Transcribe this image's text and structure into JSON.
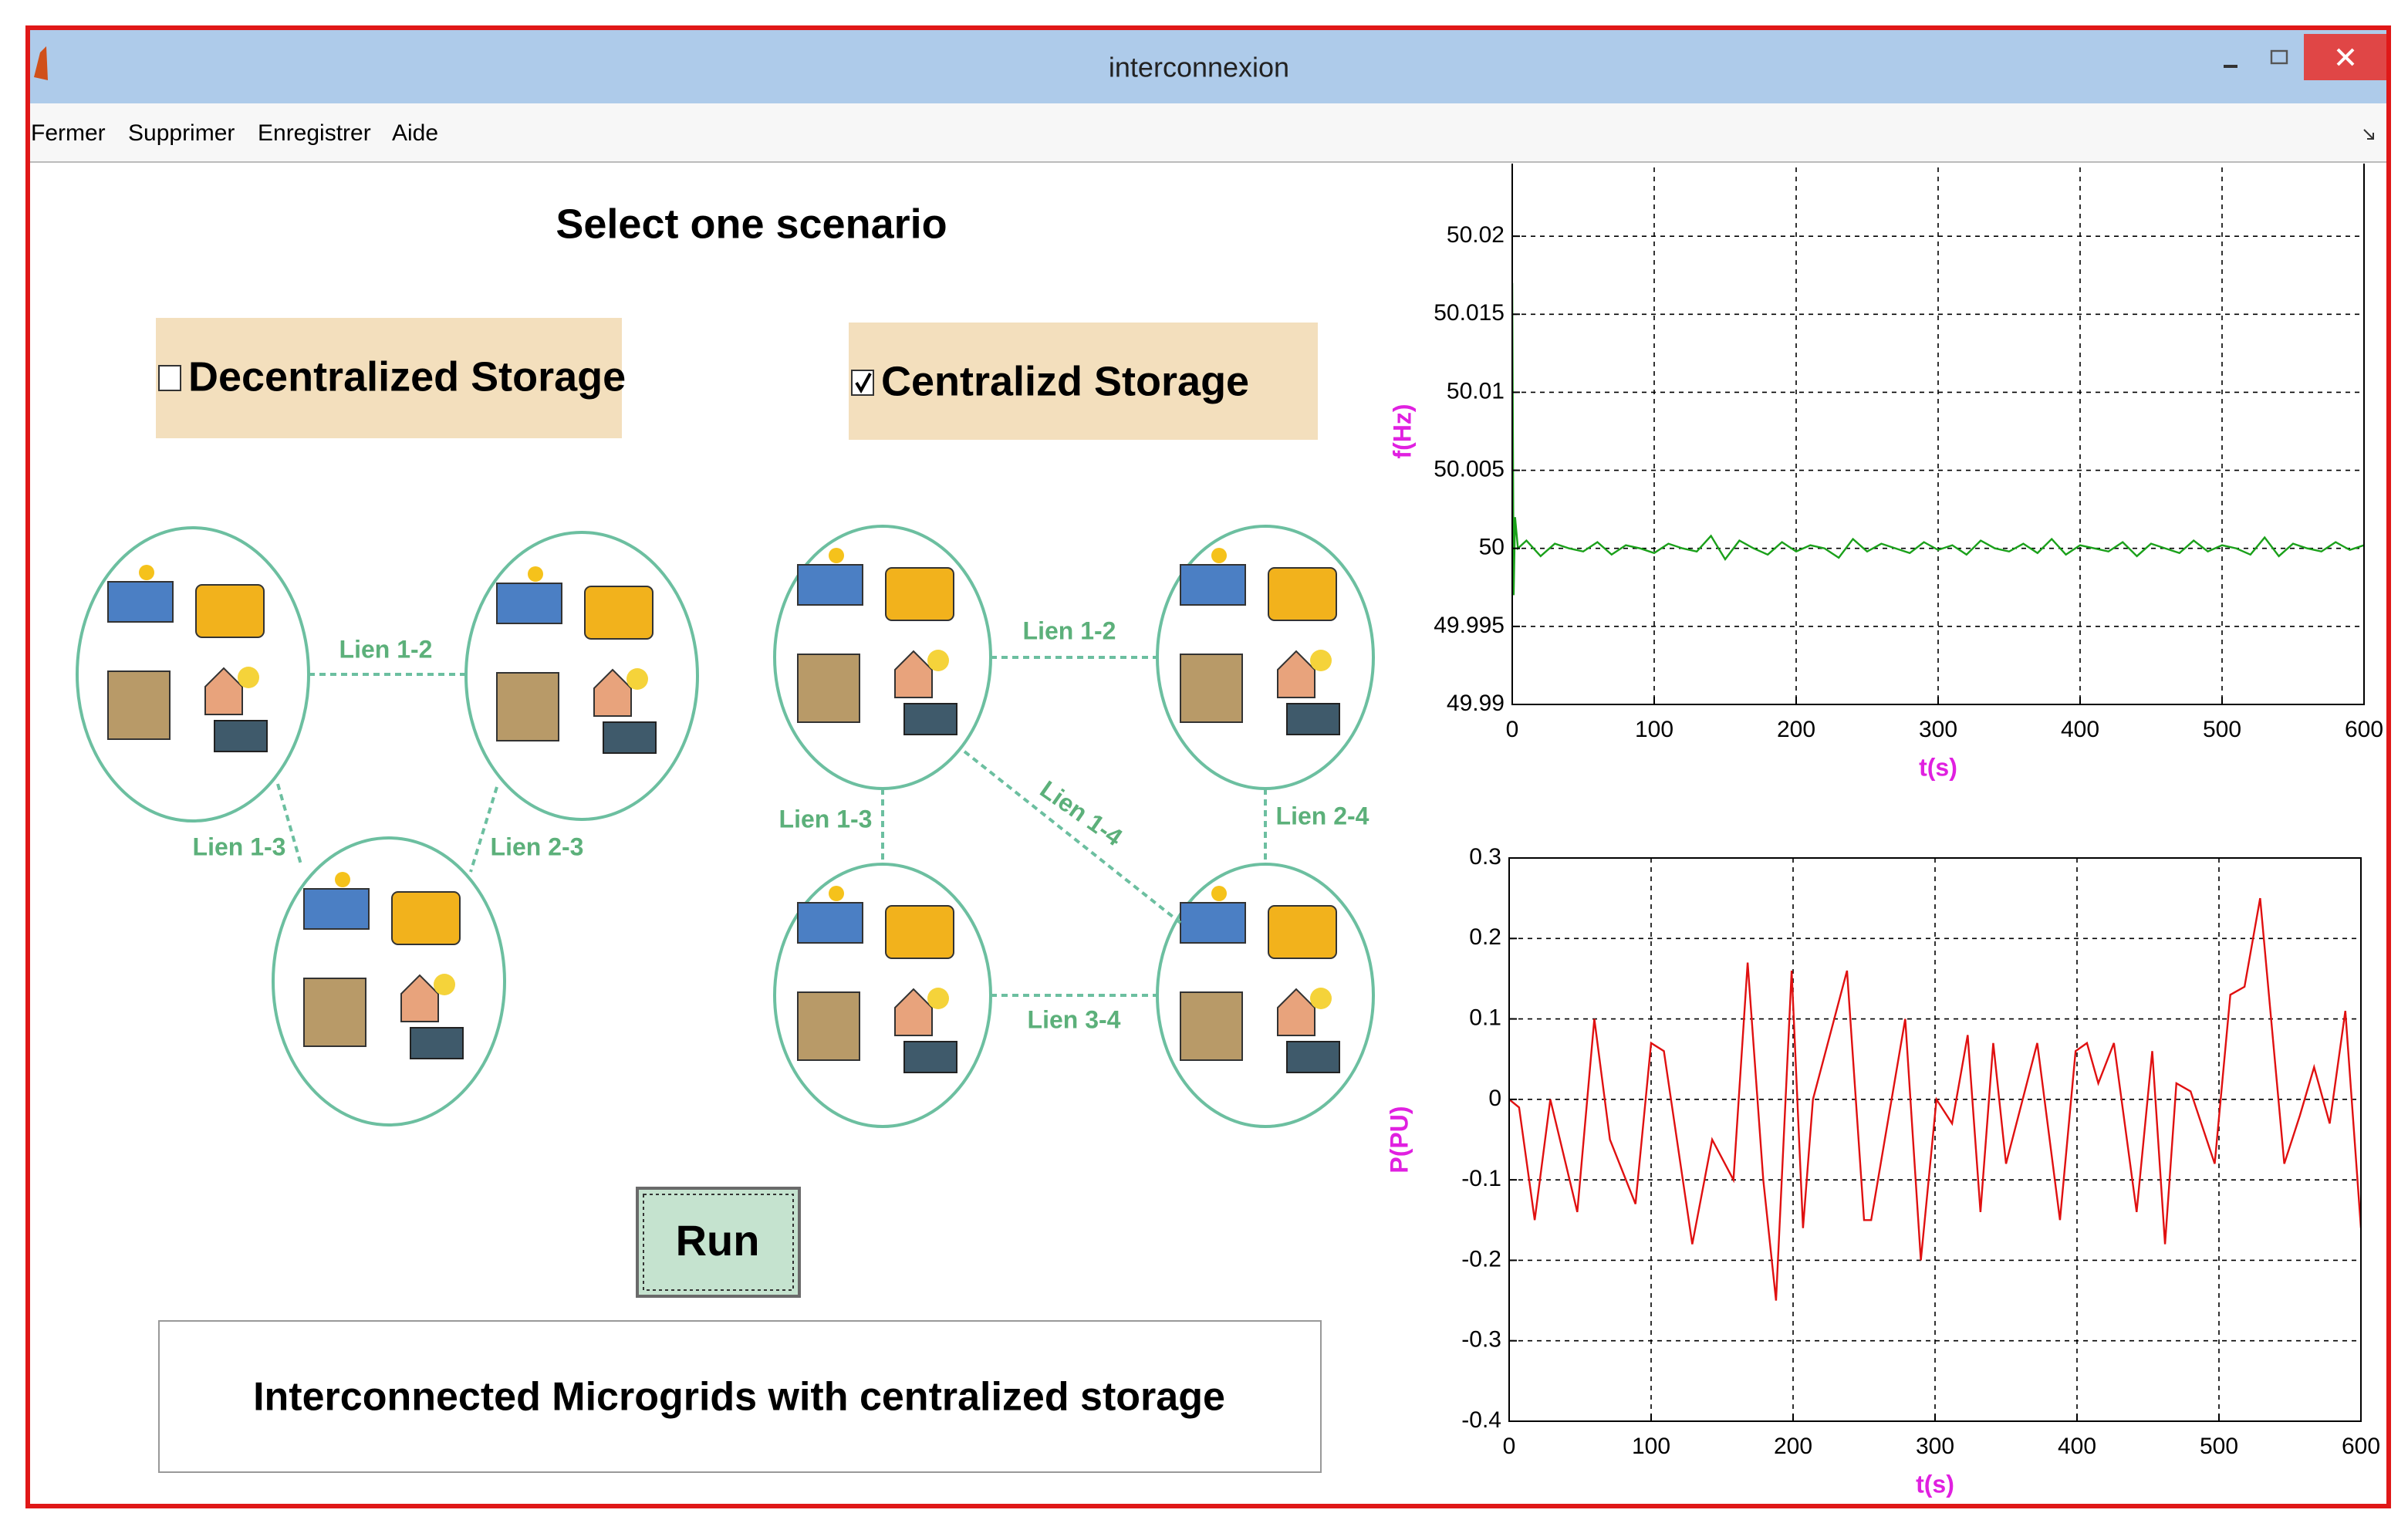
{
  "window": {
    "title": "interconnexion"
  },
  "menu": [
    "Fermer",
    "Supprimer",
    "Enregistrer",
    "Aide"
  ],
  "panel": {
    "heading": "Select one scenario",
    "options": [
      {
        "label": "Decentralized Storage",
        "checked": false
      },
      {
        "label": "Centralizd Storage",
        "checked": true
      }
    ],
    "diagrams": [
      {
        "links": [
          "Lien 1-2",
          "Lien 1-3",
          "Lien 2-3"
        ]
      },
      {
        "links": [
          "Lien 1-2",
          "Lien 1-3",
          "Lien 1-4",
          "Lien 2-4",
          "Lien 3-4"
        ]
      }
    ],
    "button": "Run",
    "status": "Interconnected Microgrids with centralized storage"
  },
  "chart_data": [
    {
      "type": "line",
      "xlabel": "t(s)",
      "ylabel": "f(Hz)",
      "x": [
        0,
        1,
        2,
        4,
        10,
        20,
        30,
        40,
        50,
        60,
        70,
        80,
        90,
        100,
        110,
        120,
        130,
        140,
        150,
        160,
        170,
        180,
        190,
        200,
        210,
        220,
        230,
        240,
        250,
        260,
        270,
        280,
        290,
        300,
        310,
        320,
        330,
        340,
        350,
        360,
        370,
        380,
        390,
        400,
        410,
        420,
        430,
        440,
        450,
        460,
        470,
        480,
        490,
        500,
        510,
        520,
        530,
        540,
        550,
        560,
        570,
        580,
        590,
        600
      ],
      "series": [
        {
          "color": "#1aa01a",
          "values": [
            50.017,
            49.997,
            50.002,
            50.0,
            50.0005,
            49.9995,
            50.0003,
            50.0,
            49.9998,
            50.0004,
            49.9996,
            50.0002,
            50.0,
            49.9997,
            50.0003,
            50.0,
            49.9998,
            50.0008,
            49.9993,
            50.0005,
            50.0,
            49.9996,
            50.0004,
            49.9998,
            50.0002,
            50.0,
            49.9994,
            50.0006,
            49.9998,
            50.0003,
            50.0,
            49.9997,
            50.0004,
            49.9999,
            50.0002,
            49.9996,
            50.0005,
            50.0,
            49.9998,
            50.0003,
            49.9997,
            50.0006,
            49.9996,
            50.0002,
            50.0,
            49.9998,
            50.0004,
            49.9995,
            50.0003,
            50.0,
            49.9997,
            50.0005,
            49.9998,
            50.0002,
            50.0,
            49.9996,
            50.0007,
            49.9995,
            50.0003,
            50.0,
            49.9998,
            50.0004,
            49.9999,
            50.0002
          ]
        }
      ],
      "xlim": [
        0,
        600
      ],
      "xticks": [
        0,
        100,
        200,
        300,
        400,
        500,
        600
      ],
      "ylim": [
        49.99,
        50.025
      ],
      "yticks": [
        49.99,
        49.995,
        50,
        50.005,
        50.01,
        50.015,
        50.02
      ],
      "grid": true
    },
    {
      "type": "line",
      "xlabel": "t(s)",
      "ylabel": "P(PU)",
      "x": [
        0,
        7,
        18,
        29,
        48,
        60,
        71,
        89,
        100,
        109,
        129,
        143,
        158,
        168,
        179,
        188,
        199,
        207,
        214,
        238,
        250,
        255,
        279,
        290,
        301,
        312,
        323,
        332,
        341,
        350,
        372,
        388,
        399,
        407,
        415,
        426,
        442,
        453,
        462,
        470,
        480,
        497,
        508,
        518,
        529,
        546,
        557,
        567,
        578,
        589,
        600
      ],
      "series": [
        {
          "color": "#e01010",
          "values": [
            0,
            -0.01,
            -0.15,
            0,
            -0.14,
            0.1,
            -0.05,
            -0.13,
            0.07,
            0.06,
            -0.18,
            -0.05,
            -0.1,
            0.17,
            -0.1,
            -0.25,
            0.16,
            -0.16,
            0,
            0.16,
            -0.15,
            -0.15,
            0.1,
            -0.2,
            0,
            -0.03,
            0.08,
            -0.14,
            0.07,
            -0.08,
            0.07,
            -0.15,
            0.06,
            0.07,
            0.02,
            0.07,
            -0.14,
            0.06,
            -0.18,
            0.02,
            0.01,
            -0.08,
            0.13,
            0.14,
            0.25,
            -0.08,
            -0.02,
            0.04,
            -0.03,
            0.11,
            -0.16
          ]
        }
      ],
      "xlim": [
        0,
        600
      ],
      "xticks": [
        0,
        100,
        200,
        300,
        400,
        500,
        600
      ],
      "ylim": [
        -0.4,
        0.3
      ],
      "yticks": [
        -0.4,
        -0.3,
        -0.2,
        -0.1,
        0,
        0.1,
        0.2,
        0.3
      ],
      "grid": true
    }
  ]
}
